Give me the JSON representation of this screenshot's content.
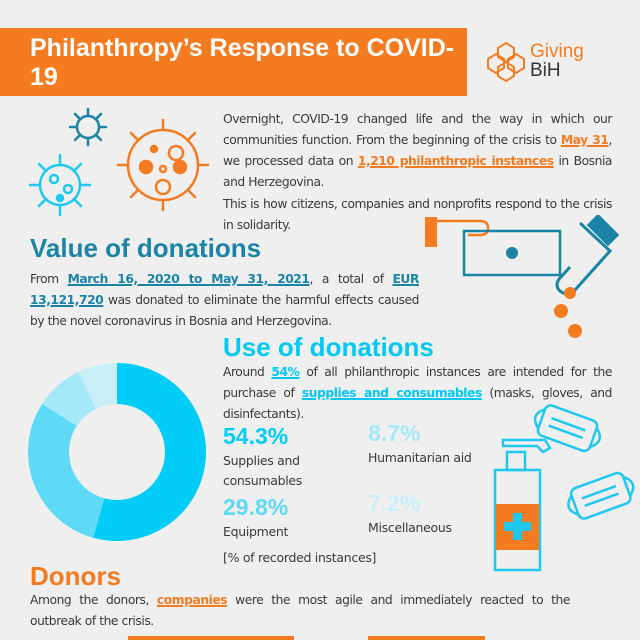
{
  "header": {
    "title": "Philanthropy’s Response to COVID-19",
    "logo_line1": "Giving",
    "logo_line2": "BiH"
  },
  "intro": {
    "p1_a": "Overnight, COVID-19 changed life and the way in which our communities function. From the beginning of the crisis to ",
    "p1_hl1": "May 31",
    "p1_b": ", we processed data on ",
    "p1_hl2": "1,210 philanthropic instances",
    "p1_c": " in Bosnia and Herzegovina.",
    "p2": "This is how citizens, companies and nonprofits respond to the crisis in solidarity."
  },
  "value": {
    "heading": "Value of donations",
    "a": "From ",
    "hl1": "March 16, 2020 to May 31, 2021",
    "b": ", a total of ",
    "hl2": "EUR 13,121,720",
    "c": " was donated to eliminate the harmful effects caused by the novel coronavirus in Bosnia and Herzegovina."
  },
  "use": {
    "heading": "Use of donations",
    "a": "Around ",
    "hl1": "54%",
    "b": " of all philanthropic instances are intended for the purchase of ",
    "hl2": "supplies and consumables",
    "c": " (masks, gloves, and disinfectants).",
    "note": "[% of recorded instances]"
  },
  "chart_data": {
    "type": "pie",
    "categories": [
      "Supplies and consumables",
      "Equipment",
      "Humanitarian aid",
      "Miscellaneous"
    ],
    "values": [
      54.3,
      29.8,
      8.7,
      7.2
    ],
    "labels": [
      "54.3%",
      "29.8%",
      "8.7%",
      "7.2%"
    ],
    "colors": [
      "#00cdf7",
      "#5edaf6",
      "#a5e8f8",
      "#c8eff8"
    ]
  },
  "donors": {
    "heading": "Donors",
    "a": "Among the donors, ",
    "hl": "companies",
    "b": " were the most agile and immediately reacted to the outbreak of the crisis."
  },
  "colors": {
    "orange": "#f47b20",
    "teal": "#1b84a6",
    "cyan": "#00c8f2",
    "background": "#efefef"
  }
}
